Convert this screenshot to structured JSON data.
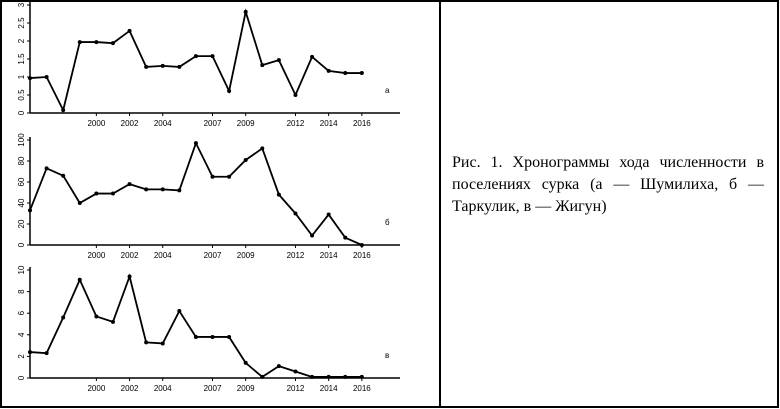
{
  "chart_data": [
    {
      "type": "line",
      "label": "а",
      "x": [
        1996,
        1997,
        1998,
        1999,
        2000,
        2001,
        2002,
        2003,
        2004,
        2005,
        2006,
        2007,
        2008,
        2009,
        2010,
        2011,
        2012,
        2013,
        2014,
        2015,
        2016
      ],
      "values": [
        0.97,
        1.0,
        0.08,
        1.97,
        1.97,
        1.94,
        2.28,
        1.28,
        1.31,
        1.28,
        1.58,
        1.58,
        0.61,
        2.81,
        1.33,
        1.47,
        0.5,
        1.56,
        1.17,
        1.11,
        1.11
      ],
      "xlim": [
        1996,
        2018.3
      ],
      "xticks": [
        2000,
        2002,
        2004,
        2007,
        2009,
        2012,
        2014,
        2016
      ],
      "ylim": [
        0,
        3
      ],
      "yticks": [
        0,
        0.5,
        1,
        1.5,
        2,
        2.5,
        3
      ],
      "color": "#000000"
    },
    {
      "type": "line",
      "label": "б",
      "x": [
        1996,
        1997,
        1998,
        1999,
        2000,
        2001,
        2002,
        2003,
        2004,
        2005,
        2006,
        2007,
        2008,
        2009,
        2010,
        2011,
        2012,
        2013,
        2014,
        2015,
        2016
      ],
      "values": [
        33,
        73,
        66,
        40,
        49,
        49,
        58,
        53,
        53,
        52,
        97,
        65,
        65,
        81,
        92,
        48,
        30,
        9,
        29,
        7,
        0
      ],
      "xlim": [
        1996,
        2018.3
      ],
      "xticks": [
        2000,
        2002,
        2004,
        2007,
        2009,
        2012,
        2014,
        2016
      ],
      "ylim": [
        0,
        100
      ],
      "yticks": [
        0,
        20,
        40,
        60,
        80,
        100
      ],
      "color": "#000000"
    },
    {
      "type": "line",
      "label": "в",
      "x": [
        1996,
        1997,
        1998,
        1999,
        2000,
        2001,
        2002,
        2003,
        2004,
        2005,
        2006,
        2007,
        2008,
        2009,
        2010,
        2011,
        2012,
        2013,
        2014,
        2015,
        2016
      ],
      "values": [
        2.4,
        2.3,
        5.6,
        9.1,
        5.7,
        5.2,
        9.4,
        3.3,
        3.2,
        6.2,
        3.8,
        3.8,
        3.8,
        1.4,
        0.1,
        1.1,
        0.6,
        0.1,
        0.1,
        0.1,
        0.1
      ],
      "xlim": [
        1996,
        2018.3
      ],
      "xticks": [
        2000,
        2002,
        2004,
        2007,
        2009,
        2012,
        2014,
        2016
      ],
      "ylim": [
        0,
        10
      ],
      "yticks": [
        0,
        2,
        4,
        6,
        8,
        10
      ],
      "color": "#000000"
    }
  ],
  "caption": "Рис. 1. Хронограммы хода численности в поселениях сурка (а — Шумилиха, б — Таркулик, в — Жигун)"
}
